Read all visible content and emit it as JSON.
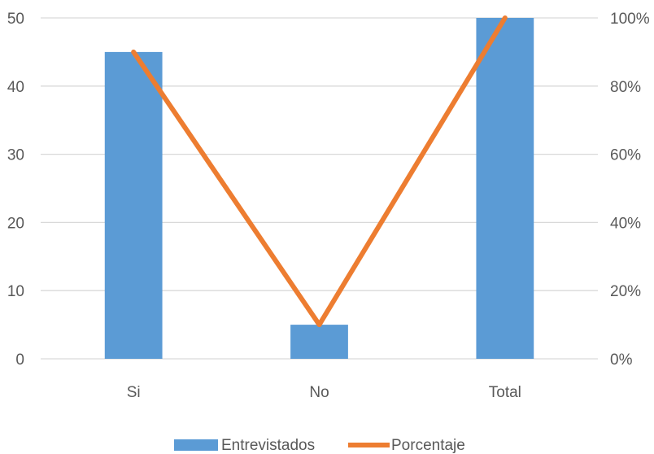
{
  "chart_data": {
    "type": "bar",
    "categories": [
      "Si",
      "No",
      "Total"
    ],
    "series": [
      {
        "name": "Entrevistados",
        "type": "bar",
        "axis": "left",
        "values": [
          45,
          5,
          50
        ],
        "color": "#5B9BD5"
      },
      {
        "name": "Porcentaje",
        "type": "line",
        "axis": "right",
        "values": [
          0.9,
          0.1,
          1.0
        ],
        "color": "#ED7D31"
      }
    ],
    "ylim": [
      0,
      50
    ],
    "y_ticks": [
      "0",
      "10",
      "20",
      "30",
      "40",
      "50"
    ],
    "y2lim": [
      0,
      1
    ],
    "y2_ticks": [
      "0%",
      "20%",
      "40%",
      "60%",
      "80%",
      "100%"
    ],
    "grid": true,
    "legend_position": "bottom",
    "gridline_color": "#D9D9D9",
    "text_color": "#595959"
  }
}
